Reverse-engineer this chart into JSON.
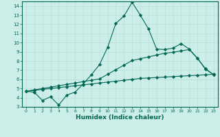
{
  "xlabel": "Humidex (Indice chaleur)",
  "bg_color": "#cceee8",
  "grid_color": "#b8ddd8",
  "line_color": "#006655",
  "xlim": [
    -0.5,
    23.5
  ],
  "ylim": [
    3,
    14.5
  ],
  "xticks": [
    0,
    1,
    2,
    3,
    4,
    5,
    6,
    7,
    8,
    9,
    10,
    11,
    12,
    13,
    14,
    15,
    16,
    17,
    18,
    19,
    20,
    21,
    22,
    23
  ],
  "yticks": [
    3,
    4,
    5,
    6,
    7,
    8,
    9,
    10,
    11,
    12,
    13,
    14
  ],
  "line1_x": [
    0,
    1,
    2,
    3,
    4,
    5,
    6,
    7,
    8,
    9,
    10,
    11,
    12,
    13,
    14,
    15,
    16,
    17,
    18,
    19,
    20,
    21,
    22,
    23
  ],
  "line1_y": [
    4.7,
    4.6,
    3.7,
    4.1,
    3.2,
    4.3,
    4.6,
    5.5,
    6.5,
    7.6,
    9.5,
    12.1,
    12.9,
    14.4,
    13.0,
    11.5,
    9.3,
    9.25,
    9.4,
    9.9,
    9.3,
    8.3,
    7.15,
    6.5
  ],
  "line2_x": [
    0,
    1,
    2,
    3,
    4,
    5,
    6,
    7,
    8,
    9,
    10,
    11,
    12,
    13,
    14,
    15,
    16,
    17,
    18,
    19,
    20,
    21,
    22,
    23
  ],
  "line2_y": [
    4.7,
    4.85,
    5.0,
    5.15,
    5.3,
    5.45,
    5.6,
    5.75,
    5.9,
    6.05,
    6.55,
    7.05,
    7.55,
    8.05,
    8.25,
    8.45,
    8.65,
    8.85,
    8.95,
    9.1,
    9.25,
    8.3,
    7.1,
    6.5
  ],
  "line3_x": [
    0,
    1,
    2,
    3,
    4,
    5,
    6,
    7,
    8,
    9,
    10,
    11,
    12,
    13,
    14,
    15,
    16,
    17,
    18,
    19,
    20,
    21,
    22,
    23
  ],
  "line3_y": [
    4.7,
    4.8,
    4.9,
    5.0,
    5.1,
    5.2,
    5.3,
    5.4,
    5.5,
    5.6,
    5.7,
    5.8,
    5.9,
    6.0,
    6.1,
    6.15,
    6.2,
    6.25,
    6.3,
    6.35,
    6.4,
    6.45,
    6.5,
    6.55
  ]
}
